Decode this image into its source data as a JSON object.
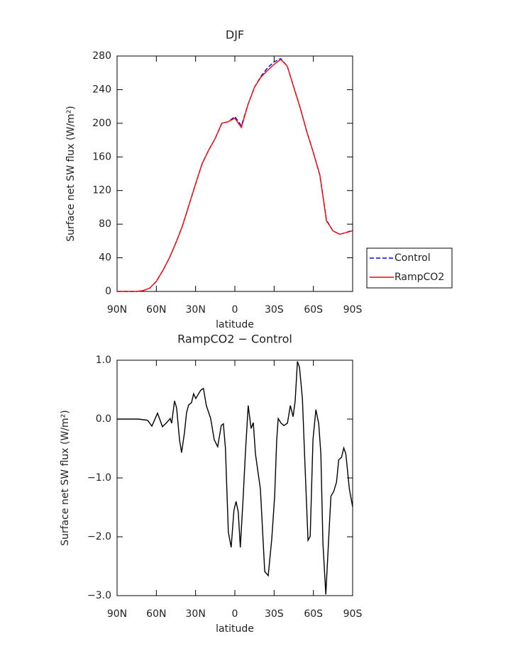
{
  "chart_data": [
    {
      "type": "line",
      "title": "DJF",
      "xlabel": "latitude",
      "ylabel": "Surface net SW flux (W/m²)",
      "x": [
        90,
        85,
        80,
        75,
        70,
        65,
        60,
        55,
        50,
        45,
        40,
        35,
        30,
        25,
        20,
        15,
        10,
        5,
        0,
        -5,
        -10,
        -15,
        -20,
        -25,
        -30,
        -35,
        -40,
        -45,
        -50,
        -55,
        -60,
        -65,
        -70,
        -75,
        -80,
        -85,
        -90
      ],
      "series": [
        {
          "name": "Control",
          "color": "#0000ff",
          "linestyle": "dashed",
          "values": [
            0,
            0,
            0,
            0,
            1,
            4,
            12,
            25,
            40,
            58,
            78,
            103,
            128,
            152,
            168,
            182,
            200,
            202,
            208,
            197,
            222,
            243,
            256,
            266,
            273,
            277,
            268,
            243,
            218,
            190,
            165,
            138,
            85,
            72,
            68,
            70,
            73
          ]
        },
        {
          "name": "RampCO2",
          "color": "#ff0000",
          "linestyle": "solid",
          "values": [
            0,
            0,
            0,
            0,
            1,
            4,
            12,
            25,
            40,
            58,
            78,
            103,
            128,
            152,
            168,
            182,
            200,
            202,
            206,
            195,
            222,
            243,
            255,
            263,
            270,
            276,
            268,
            243,
            218,
            190,
            165,
            138,
            84,
            72,
            68,
            70,
            72
          ]
        }
      ],
      "xlim": [
        90,
        -90
      ],
      "xticks": [
        {
          "value": 90,
          "label": "90N"
        },
        {
          "value": 60,
          "label": "60N"
        },
        {
          "value": 30,
          "label": "30N"
        },
        0,
        {
          "value": -30,
          "label": "30S"
        },
        {
          "value": -60,
          "label": "60S"
        },
        {
          "value": -90,
          "label": "90S"
        }
      ],
      "ylim": [
        0,
        280
      ],
      "yticks": [
        0,
        40,
        80,
        120,
        160,
        200,
        240,
        280
      ],
      "legend": "right"
    },
    {
      "type": "line",
      "title": "RampCO2 − Control",
      "xlabel": "latitude",
      "ylabel": "Surface net SW flux (W/m²)",
      "color": "#000000",
      "x": [
        90,
        73.7,
        66.7,
        63.4,
        59.1,
        55.3,
        52.1,
        49.4,
        48.3,
        46.1,
        44.5,
        42.3,
        40.7,
        38.5,
        36.9,
        35.3,
        33.1,
        31.5,
        29.9,
        27.7,
        26.1,
        24.0,
        21.8,
        18.5,
        15.8,
        13.1,
        10.4,
        8.8,
        7.2,
        5.0,
        2.8,
        0.7,
        -0.9,
        -2.6,
        -4.2,
        -6.4,
        -8.0,
        -10.2,
        -12.4,
        -14.1,
        -15.7,
        -19.5,
        -22.8,
        -25.5,
        -28.2,
        -30.4,
        -32.0,
        -33.1,
        -35.3,
        -37.5,
        -40.2,
        -42.4,
        -44.5,
        -46.1,
        -47.8,
        -49.4,
        -51.6,
        -53.7,
        -55.9,
        -57.6,
        -59.7,
        -61.9,
        -64.1,
        -65.7,
        -67.3,
        -69.5,
        -71.7,
        -73.4,
        -75.5,
        -77.7,
        -79.4,
        -81.5,
        -83.2,
        -84.8,
        -87.5,
        -90
      ],
      "values": [
        0,
        0,
        -0.02,
        -0.12,
        0.1,
        -0.13,
        -0.06,
        0.01,
        -0.07,
        0.31,
        0.19,
        -0.35,
        -0.57,
        -0.23,
        0.11,
        0.24,
        0.28,
        0.43,
        0.35,
        0.43,
        0.49,
        0.52,
        0.23,
        0.01,
        -0.35,
        -0.47,
        -0.11,
        -0.08,
        -0.49,
        -1.92,
        -2.18,
        -1.55,
        -1.4,
        -1.58,
        -2.18,
        -1.31,
        -0.59,
        0.23,
        -0.16,
        -0.06,
        -0.59,
        -1.19,
        -2.59,
        -2.66,
        -2.04,
        -1.31,
        -0.35,
        0.01,
        -0.07,
        -0.11,
        -0.07,
        0.23,
        0.04,
        0.31,
        0.98,
        0.88,
        0.35,
        -0.83,
        -2.06,
        -1.99,
        -0.35,
        0.16,
        -0.08,
        -0.59,
        -2.1,
        -2.98,
        -2.04,
        -1.31,
        -1.23,
        -1.07,
        -0.69,
        -0.65,
        -0.49,
        -0.59,
        -1.19,
        -1.49
      ],
      "xlim": [
        90,
        -90
      ],
      "xticks": [
        {
          "value": 90,
          "label": "90N"
        },
        {
          "value": 60,
          "label": "60N"
        },
        {
          "value": 30,
          "label": "30N"
        },
        0,
        {
          "value": -30,
          "label": "30S"
        },
        {
          "value": -60,
          "label": "60S"
        },
        {
          "value": -90,
          "label": "90S"
        }
      ],
      "ylim": [
        -3,
        1
      ],
      "yticks": [
        {
          "value": -3,
          "label": "−3.0"
        },
        {
          "value": -2,
          "label": "−2.0"
        },
        {
          "value": -1,
          "label": "−1.0"
        },
        {
          "value": 0,
          "label": "0.0"
        },
        {
          "value": 1,
          "label": "1.0"
        }
      ]
    }
  ]
}
